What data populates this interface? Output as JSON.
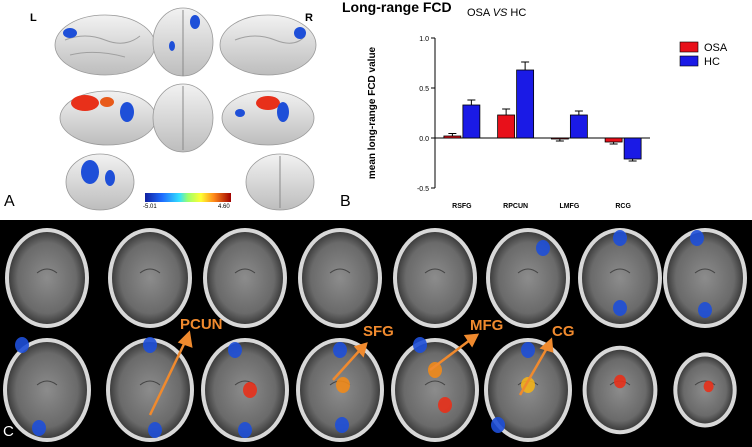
{
  "panel_a": {
    "label": "A",
    "left_hemisphere": "L",
    "right_hemisphere": "R",
    "colorbar": {
      "min_label": "-5.01",
      "max_label": "4.60"
    }
  },
  "panel_b": {
    "label": "B",
    "heading": "Long-range FCD",
    "chart_data": {
      "type": "bar",
      "title": "OSA VS HC",
      "title_prefix": "OSA ",
      "title_italic": "VS",
      "title_suffix": " HC",
      "xlabel": "",
      "ylabel": "mean long-range FCD value",
      "categories": [
        "RSFG",
        "RPCUN",
        "LMFG",
        "RCG"
      ],
      "ylim": [
        -0.5,
        1.0
      ],
      "yticks": [
        -0.5,
        0.0,
        0.5,
        1.0
      ],
      "ytick_labels": [
        "-0.5",
        "0.0",
        "0.5",
        "1.0"
      ],
      "series": [
        {
          "name": "OSA",
          "color": "#e8101a",
          "values": [
            0.02,
            0.23,
            -0.01,
            -0.04
          ],
          "errors": [
            0.025,
            0.06,
            0.02,
            0.02
          ]
        },
        {
          "name": "HC",
          "color": "#1a1ae6",
          "values": [
            0.33,
            0.68,
            0.23,
            -0.21
          ],
          "errors": [
            0.05,
            0.08,
            0.04,
            0.02
          ]
        }
      ],
      "legend_position": "top-right"
    }
  },
  "panel_c": {
    "label": "C",
    "annotations": [
      "PCUN",
      "SFG",
      "MFG",
      "CG"
    ],
    "annotation_color": "#f08a2e"
  }
}
